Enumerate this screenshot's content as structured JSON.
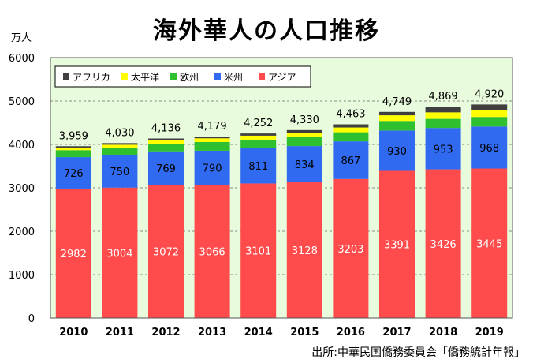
{
  "chart_data": {
    "type": "bar",
    "stacked": true,
    "title": "海外華人の人口推移",
    "ylabel": "万人",
    "xlabel": "",
    "ylim": [
      0,
      6000
    ],
    "yticks": [
      0,
      1000,
      2000,
      3000,
      4000,
      5000,
      6000
    ],
    "grid": true,
    "legend_position": "top-left",
    "categories": [
      "2010",
      "2011",
      "2012",
      "2013",
      "2014",
      "2015",
      "2016",
      "2017",
      "2018",
      "2019"
    ],
    "series": [
      {
        "name": "アジア",
        "color": "#ff4b4b",
        "values": [
          2982,
          3004,
          3072,
          3066,
          3101,
          3128,
          3203,
          3391,
          3426,
          3445
        ]
      },
      {
        "name": "米州",
        "color": "#2f6af0",
        "values": [
          726,
          750,
          769,
          790,
          811,
          834,
          867,
          930,
          953,
          968
        ]
      },
      {
        "name": "欧州",
        "color": "#2ec02e",
        "values": [
          160,
          170,
          170,
          200,
          200,
          210,
          210,
          220,
          210,
          220
        ]
      },
      {
        "name": "太平洋",
        "color": "#ffff00",
        "values": [
          60,
          70,
          85,
          85,
          90,
          100,
          110,
          130,
          150,
          160
        ]
      },
      {
        "name": "アフリカ",
        "color": "#3f3f3f",
        "values": [
          31,
          36,
          40,
          38,
          50,
          58,
          73,
          78,
          130,
          127
        ]
      }
    ],
    "totals": [
      "3,959",
      "4,030",
      "4,136",
      "4,179",
      "4,252",
      "4,330",
      "4,463",
      "4,749",
      "4,869",
      "4,920"
    ],
    "source": "出所:中華民国僑務委員会「僑務統計年報」"
  }
}
